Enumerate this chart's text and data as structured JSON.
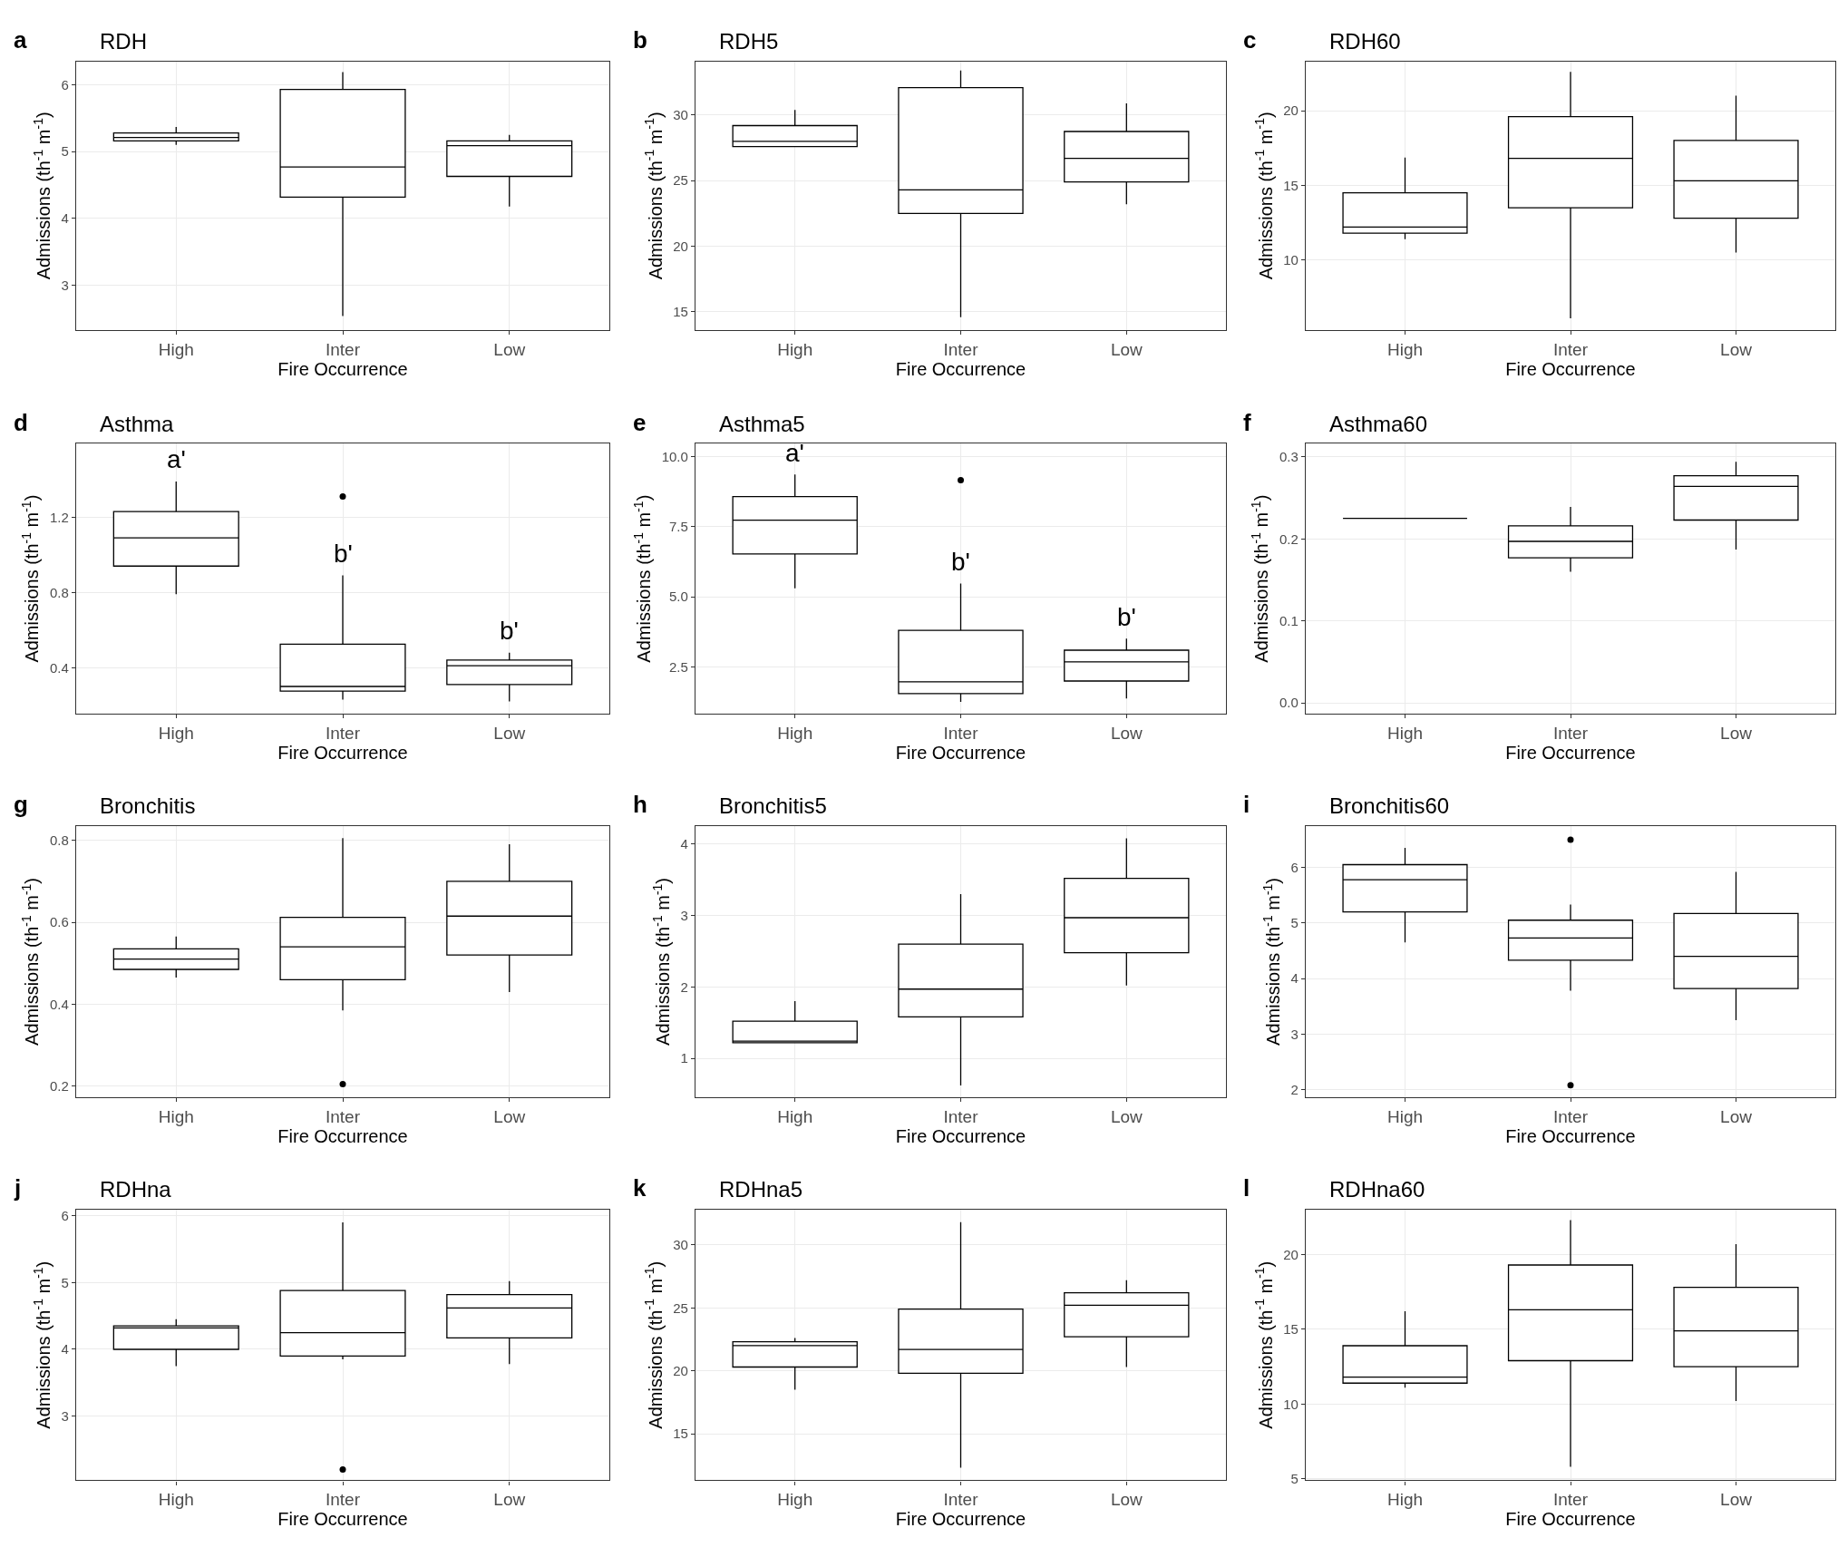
{
  "chart_data": [
    {
      "type": "box",
      "title": "RDH",
      "annotations": [
        "a"
      ],
      "xlabel": "Fire Occurrence",
      "ylabel": "Admissions (th$^{-1}$ m$^{-1}$)",
      "categories": [
        "High",
        "Inter",
        "Low"
      ],
      "ylim": [
        2.33,
        6.35
      ],
      "yticks": [
        3,
        4,
        5,
        6
      ],
      "grid": true,
      "color": "#000000",
      "boxes": [
        {
          "low": 5.1,
          "q1": 5.16,
          "median": 5.21,
          "q3": 5.28,
          "high": 5.37
        },
        {
          "low": 2.54,
          "q1": 4.32,
          "median": 4.77,
          "q3": 5.93,
          "high": 6.19
        },
        {
          "low": 4.18,
          "q1": 4.63,
          "median": 5.09,
          "q3": 5.16,
          "high": 5.25
        }
      ]
    },
    {
      "type": "box",
      "title": "RDH5",
      "annotations": [
        "b"
      ],
      "xlabel": "Fire Occurrence",
      "ylabel": "Admissions (th$^{-1}$ m$^{-1}$)",
      "categories": [
        "High",
        "Inter",
        "Low"
      ],
      "ylim": [
        13.6,
        34.1
      ],
      "yticks": [
        15,
        20,
        25,
        30
      ],
      "grid": true,
      "color": "#000000",
      "boxes": [
        {
          "low": 27.6,
          "q1": 27.6,
          "median": 28.0,
          "q3": 29.2,
          "high": 30.4
        },
        {
          "low": 14.6,
          "q1": 22.5,
          "median": 24.3,
          "q3": 32.1,
          "high": 33.4
        },
        {
          "low": 23.2,
          "q1": 24.9,
          "median": 26.7,
          "q3": 28.75,
          "high": 30.9
        }
      ]
    },
    {
      "type": "box",
      "title": "RDH60",
      "annotations": [
        "c"
      ],
      "xlabel": "Fire Occurrence",
      "ylabel": "Admissions (th$^{-1}$ m$^{-1}$)",
      "categories": [
        "High",
        "Inter",
        "Low"
      ],
      "ylim": [
        5.3,
        23.3
      ],
      "yticks": [
        10,
        15,
        20
      ],
      "grid": true,
      "color": "#000000",
      "boxes": [
        {
          "low": 11.4,
          "q1": 11.8,
          "median": 12.2,
          "q3": 14.5,
          "high": 16.85
        },
        {
          "low": 6.1,
          "q1": 13.5,
          "median": 16.8,
          "q3": 19.6,
          "high": 22.6
        },
        {
          "low": 10.5,
          "q1": 12.8,
          "median": 15.3,
          "q3": 18.0,
          "high": 21.0
        }
      ]
    },
    {
      "type": "box",
      "title": "Asthma",
      "annotations": [
        "d",
        "a'",
        "b'",
        "b'"
      ],
      "xlabel": "Fire Occurrence",
      "ylabel": "Admissions (th$^{-1}$ m$^{-1}$)",
      "categories": [
        "High",
        "Inter",
        "Low"
      ],
      "ylim": [
        0.156,
        1.59
      ],
      "yticks": [
        0.4,
        0.8,
        1.2
      ],
      "grid": true,
      "color": "#000000",
      "boxes": [
        {
          "low": 0.79,
          "q1": 0.94,
          "median": 1.09,
          "q3": 1.23,
          "high": 1.39
        },
        {
          "low": 0.23,
          "q1": 0.275,
          "median": 0.3,
          "q3": 0.525,
          "high": 0.89,
          "outliers": [
            1.31
          ]
        },
        {
          "low": 0.22,
          "q1": 0.31,
          "median": 0.41,
          "q3": 0.44,
          "high": 0.48
        }
      ]
    },
    {
      "type": "box",
      "title": "Asthma5",
      "annotations": [
        "e",
        "a'",
        "b'",
        "b'"
      ],
      "xlabel": "Fire Occurrence",
      "ylabel": "Admissions (th$^{-1}$ m$^{-1}$)",
      "categories": [
        "High",
        "Inter",
        "Low"
      ],
      "ylim": [
        0.84,
        10.46
      ],
      "yticks": [
        {
          "value": 2.5,
          "label": "2.5"
        },
        {
          "value": 5,
          "label": "5.0"
        },
        {
          "value": 7.5,
          "label": "7.5"
        },
        {
          "value": 10,
          "label": "10.0"
        }
      ],
      "grid": true,
      "color": "#000000",
      "boxes": [
        {
          "low": 5.31,
          "q1": 6.53,
          "median": 7.74,
          "q3": 8.58,
          "high": 9.37
        },
        {
          "low": 1.26,
          "q1": 1.55,
          "median": 1.97,
          "q3": 3.81,
          "high": 5.48,
          "outliers": [
            9.16
          ]
        },
        {
          "low": 1.38,
          "q1": 2.0,
          "median": 2.68,
          "q3": 3.1,
          "high": 3.51
        }
      ]
    },
    {
      "type": "box",
      "title": "Asthma60",
      "annotations": [
        "f"
      ],
      "xlabel": "Fire Occurrence",
      "ylabel": "Admissions (th$^{-1}$ m$^{-1}$)",
      "categories": [
        "High",
        "Inter",
        "Low"
      ],
      "ylim": [
        -0.013,
        0.316
      ],
      "yticks": [
        {
          "value": 0,
          "label": "0.0"
        },
        0.1,
        0.2,
        0.3
      ],
      "grid": true,
      "color": "#000000",
      "boxes": [
        {
          "low": 0.225,
          "q1": 0.225,
          "median": 0.225,
          "q3": 0.225,
          "high": 0.225
        },
        {
          "low": 0.16,
          "q1": 0.177,
          "median": 0.197,
          "q3": 0.216,
          "high": 0.239
        },
        {
          "low": 0.187,
          "q1": 0.223,
          "median": 0.264,
          "q3": 0.277,
          "high": 0.294
        }
      ]
    },
    {
      "type": "box",
      "title": "Bronchitis",
      "annotations": [
        "g"
      ],
      "xlabel": "Fire Occurrence",
      "ylabel": "Admissions (th$^{-1}$ m$^{-1}$)",
      "categories": [
        "High",
        "Inter",
        "Low"
      ],
      "ylim": [
        0.174,
        0.834
      ],
      "yticks": [
        0.2,
        0.4,
        0.6,
        0.8
      ],
      "grid": true,
      "color": "#000000",
      "boxes": [
        {
          "low": 0.465,
          "q1": 0.485,
          "median": 0.51,
          "q3": 0.535,
          "high": 0.565
        },
        {
          "low": 0.385,
          "q1": 0.46,
          "median": 0.54,
          "q3": 0.612,
          "high": 0.805,
          "outliers": [
            0.205
          ]
        },
        {
          "low": 0.43,
          "q1": 0.52,
          "median": 0.615,
          "q3": 0.7,
          "high": 0.79
        }
      ]
    },
    {
      "type": "box",
      "title": "Bronchitis5",
      "annotations": [
        "h"
      ],
      "xlabel": "Fire Occurrence",
      "ylabel": "Admissions (th$^{-1}$ m$^{-1}$)",
      "categories": [
        "High",
        "Inter",
        "Low"
      ],
      "ylim": [
        0.46,
        4.25
      ],
      "yticks": [
        1,
        2,
        3,
        4
      ],
      "grid": true,
      "color": "#000000",
      "boxes": [
        {
          "low": 1.22,
          "q1": 1.22,
          "median": 1.24,
          "q3": 1.52,
          "high": 1.8
        },
        {
          "low": 0.62,
          "q1": 1.58,
          "median": 1.97,
          "q3": 2.6,
          "high": 3.3
        },
        {
          "low": 2.02,
          "q1": 2.48,
          "median": 2.97,
          "q3": 3.52,
          "high": 4.08
        }
      ]
    },
    {
      "type": "box",
      "title": "Bronchitis60",
      "annotations": [
        "i"
      ],
      "xlabel": "Fire Occurrence",
      "ylabel": "Admissions (th$^{-1}$ m$^{-1}$)",
      "categories": [
        "High",
        "Inter",
        "Low"
      ],
      "ylim": [
        1.87,
        6.74
      ],
      "yticks": [
        2,
        3,
        4,
        5,
        6
      ],
      "grid": true,
      "color": "#000000",
      "boxes": [
        {
          "low": 4.65,
          "q1": 5.2,
          "median": 5.78,
          "q3": 6.05,
          "high": 6.35
        },
        {
          "low": 3.78,
          "q1": 4.33,
          "median": 4.73,
          "q3": 5.05,
          "high": 5.33,
          "outliers": [
            6.5,
            2.08
          ]
        },
        {
          "low": 3.25,
          "q1": 3.82,
          "median": 4.4,
          "q3": 5.17,
          "high": 5.92
        }
      ]
    },
    {
      "type": "box",
      "title": "RDHna",
      "annotations": [
        "j"
      ],
      "xlabel": "Fire Occurrence",
      "ylabel": "Admissions (th$^{-1}$ m$^{-1}$)",
      "categories": [
        "High",
        "Inter",
        "Low"
      ],
      "ylim": [
        2.04,
        6.09
      ],
      "yticks": [
        3,
        4,
        5,
        6
      ],
      "grid": true,
      "color": "#000000",
      "boxes": [
        {
          "low": 3.75,
          "q1": 4.0,
          "median": 4.32,
          "q3": 4.35,
          "high": 4.45
        },
        {
          "low": 3.85,
          "q1": 3.9,
          "median": 4.25,
          "q3": 4.88,
          "high": 5.9,
          "outliers": [
            2.2
          ]
        },
        {
          "low": 3.78,
          "q1": 4.17,
          "median": 4.62,
          "q3": 4.82,
          "high": 5.02
        }
      ]
    },
    {
      "type": "box",
      "title": "RDHna5",
      "annotations": [
        "k"
      ],
      "xlabel": "Fire Occurrence",
      "ylabel": "Admissions (th$^{-1}$ m$^{-1}$)",
      "categories": [
        "High",
        "Inter",
        "Low"
      ],
      "ylim": [
        11.3,
        32.8
      ],
      "yticks": [
        15,
        20,
        25,
        30
      ],
      "grid": true,
      "color": "#000000",
      "boxes": [
        {
          "low": 18.5,
          "q1": 20.3,
          "median": 22.0,
          "q3": 22.3,
          "high": 22.6
        },
        {
          "low": 12.3,
          "q1": 19.8,
          "median": 21.7,
          "q3": 24.9,
          "high": 31.8
        },
        {
          "low": 20.3,
          "q1": 22.7,
          "median": 25.2,
          "q3": 26.2,
          "high": 27.2
        }
      ]
    },
    {
      "type": "box",
      "title": "RDHna60",
      "annotations": [
        "l"
      ],
      "xlabel": "Fire Occurrence",
      "ylabel": "Admissions (th$^{-1}$ m$^{-1}$)",
      "categories": [
        "High",
        "Inter",
        "Low"
      ],
      "ylim": [
        4.9,
        23.0
      ],
      "yticks": [
        5,
        10,
        15,
        20
      ],
      "grid": true,
      "color": "#000000",
      "boxes": [
        {
          "low": 11.1,
          "q1": 11.4,
          "median": 11.8,
          "q3": 13.9,
          "high": 16.2
        },
        {
          "low": 5.8,
          "q1": 12.9,
          "median": 16.3,
          "q3": 19.3,
          "high": 22.3
        },
        {
          "low": 10.2,
          "q1": 12.5,
          "median": 14.9,
          "q3": 17.8,
          "high": 20.7
        }
      ]
    }
  ]
}
